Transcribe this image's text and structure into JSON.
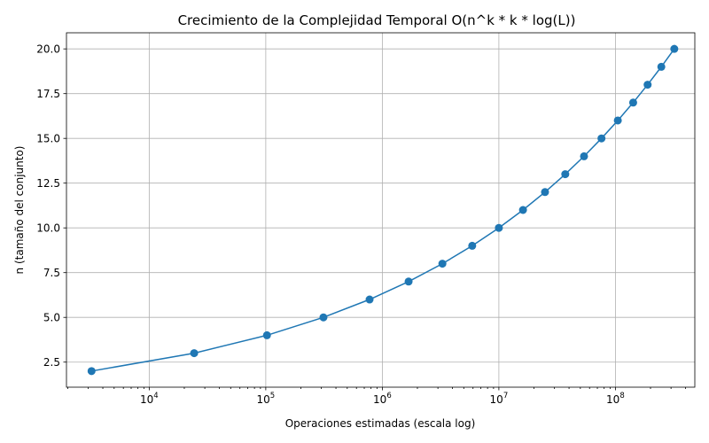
{
  "chart_data": {
    "type": "line",
    "title": "Crecimiento de la Complejidad Temporal O(n^k * k * log(L))",
    "xlabel": "Operaciones estimadas (escala log)",
    "ylabel": "n (tamaño del conjunto)",
    "xscale": "log",
    "xlim": [
      1950,
      480000000
    ],
    "ylim": [
      1.1,
      20.9
    ],
    "grid": true,
    "x_tick_values": [
      10000,
      100000,
      1000000,
      10000000,
      100000000
    ],
    "x_tick_labels": [
      {
        "base": "10",
        "exp": "4"
      },
      {
        "base": "10",
        "exp": "5"
      },
      {
        "base": "10",
        "exp": "6"
      },
      {
        "base": "10",
        "exp": "7"
      },
      {
        "base": "10",
        "exp": "8"
      }
    ],
    "y_ticks": [
      2.5,
      5.0,
      7.5,
      10.0,
      12.5,
      15.0,
      17.5,
      20.0
    ],
    "y_tick_labels": [
      "2.5",
      "5.0",
      "7.5",
      "10.0",
      "12.5",
      "15.0",
      "17.5",
      "20.0"
    ],
    "series": [
      {
        "color": "#1f77b4",
        "marker": "circle",
        "points": [
          {
            "x": 3200,
            "y": 2
          },
          {
            "x": 24300,
            "y": 3
          },
          {
            "x": 102400,
            "y": 4
          },
          {
            "x": 312500,
            "y": 5
          },
          {
            "x": 777600,
            "y": 6
          },
          {
            "x": 1680700,
            "y": 7
          },
          {
            "x": 3276800,
            "y": 8
          },
          {
            "x": 5904900,
            "y": 9
          },
          {
            "x": 10000000,
            "y": 10
          },
          {
            "x": 16105100,
            "y": 11
          },
          {
            "x": 24883200,
            "y": 12
          },
          {
            "x": 37129300,
            "y": 13
          },
          {
            "x": 53782400,
            "y": 14
          },
          {
            "x": 75937500,
            "y": 15
          },
          {
            "x": 104857600,
            "y": 16
          },
          {
            "x": 141985700,
            "y": 17
          },
          {
            "x": 188956800,
            "y": 18
          },
          {
            "x": 247609900,
            "y": 19
          },
          {
            "x": 320000000,
            "y": 20
          }
        ]
      }
    ]
  }
}
